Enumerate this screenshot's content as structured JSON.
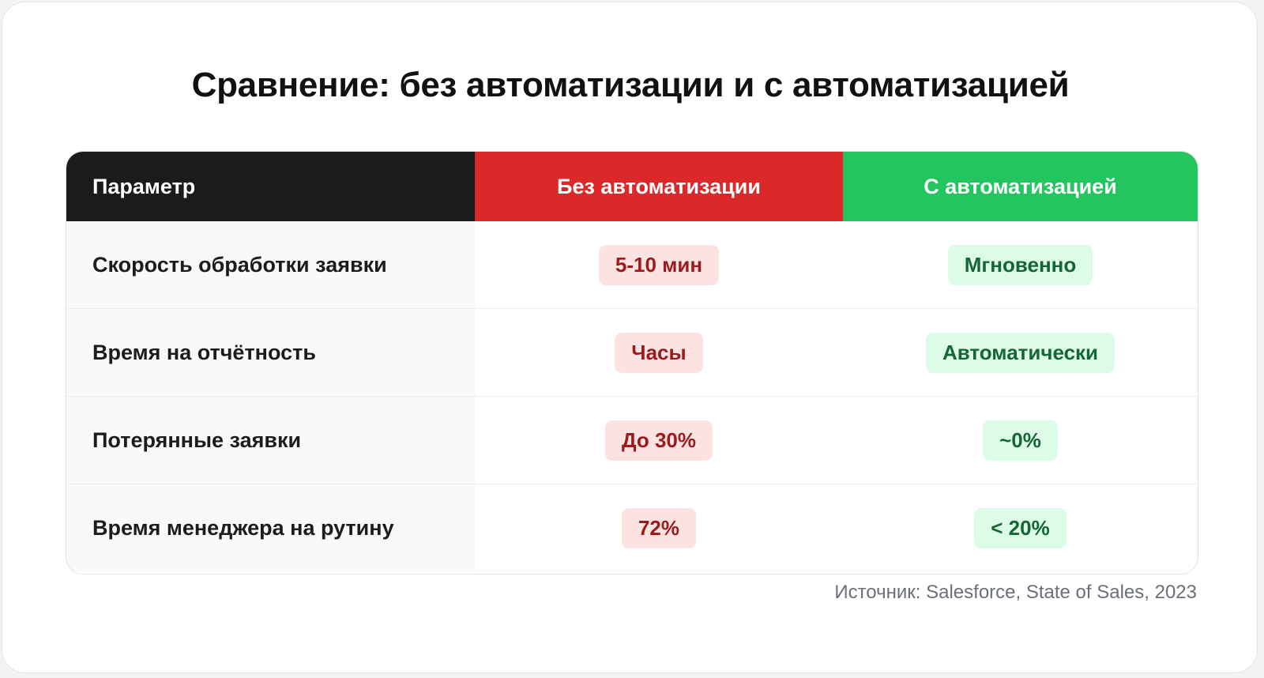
{
  "title": "Сравнение: без автоматизации и с автоматизацией",
  "table": {
    "headers": {
      "param": "Параметр",
      "without": "Без автоматизации",
      "with": "С автоматизацией"
    },
    "rows": [
      {
        "param": "Скорость обработки заявки",
        "without": "5-10 мин",
        "with": "Мгновенно"
      },
      {
        "param": "Время на отчётность",
        "without": "Часы",
        "with": "Автоматически"
      },
      {
        "param": "Потерянные заявки",
        "without": "До 30%",
        "with": "~0%"
      },
      {
        "param": "Время менеджера на рутину",
        "without": "72%",
        "with": "< 20%"
      }
    ]
  },
  "source": "Источник: Salesforce, State of Sales, 2023",
  "colors": {
    "header_param": "#1b1b1b",
    "header_without": "#dc2828",
    "header_with": "#23c55e",
    "pill_red_bg": "#fde2e2",
    "pill_red_text": "#991b1b",
    "pill_green_bg": "#dcfce7",
    "pill_green_text": "#166534"
  }
}
